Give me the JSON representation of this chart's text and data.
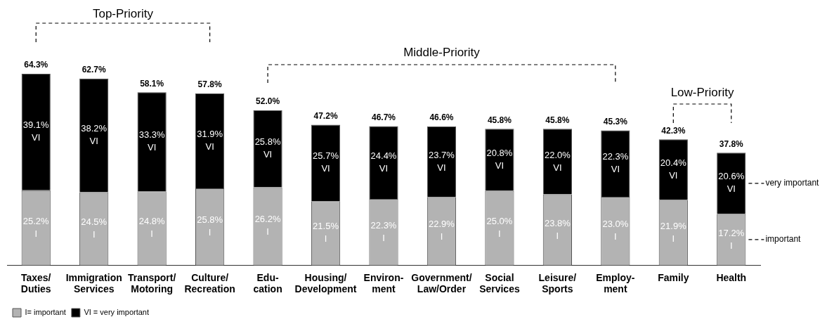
{
  "chart_data": {
    "type": "bar",
    "stacked": true,
    "tick_labels": "x",
    "grid": false,
    "legend": "bottom left",
    "data_labels": false,
    "categories": [
      "Taxes/\nDuties",
      "Immigration\nServices",
      "Transport/\nMotoring",
      "Culture/\nRecreation",
      "Edu-\ncation",
      "Housing/\nDevelopment",
      "Environ-\nment",
      "Government/\nLaw/Order",
      "Social\nServices",
      "Leisure/\nSports",
      "Employ-\nment",
      "Family",
      "Health"
    ],
    "series": [
      {
        "name": "I= important",
        "color": "#b3b3b3",
        "values": [
          25.2,
          24.5,
          24.8,
          25.8,
          26.2,
          21.5,
          22.3,
          22.9,
          25.0,
          23.8,
          23.0,
          21.9,
          17.2
        ],
        "value_labels": [
          "25.2%\nI",
          "24.5%\nI",
          "24.8%\nI",
          "25.8%\nI",
          "26.2%\nI",
          "21.5%\nI",
          "22.3%\nI",
          "22.9%\nI",
          "25.0%\nI",
          "23.8%\nI",
          "23.0%\nI",
          "21.9%\nI",
          "17.2%\nI"
        ]
      },
      {
        "name": "VI = very important",
        "color": "#000000",
        "values": [
          39.1,
          38.2,
          33.3,
          31.9,
          25.8,
          25.7,
          24.4,
          23.7,
          20.8,
          22.0,
          22.3,
          20.4,
          20.6
        ],
        "value_labels": [
          "39.1%\nVI",
          "38.2%\nVI",
          "33.3%\nVI",
          "31.9%\nVI",
          "25.8%\nVI",
          "25.7%\nVI",
          "24.4%\nVI",
          "23.7%\nVI",
          "20.8%\nVI",
          "22.0%\nVI",
          "22.3%\nVI",
          "20.4%\nVI",
          "20.6%\nVI"
        ]
      }
    ],
    "totals": [
      "64.3%",
      "62.7%",
      "58.1%",
      "57.8%",
      "52.0%",
      "47.2%",
      "46.7%",
      "46.6%",
      "45.8%",
      "45.8%",
      "45.3%",
      "42.3%",
      "37.8%"
    ],
    "annotations": [
      "Top-Priority",
      "Middle-Priority",
      "Low-Priority",
      "very important",
      "important"
    ]
  }
}
